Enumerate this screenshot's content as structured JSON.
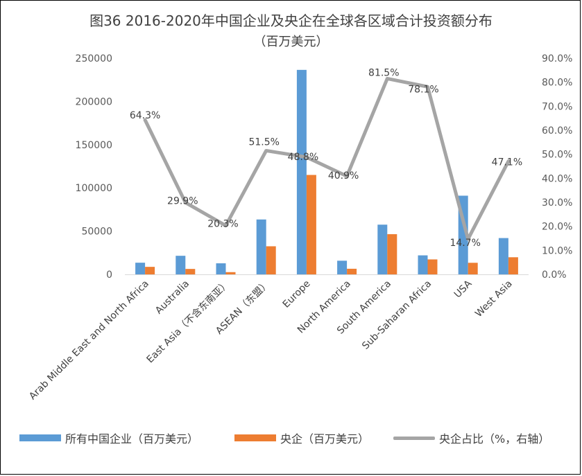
{
  "chart_data": {
    "type": "bar",
    "title": "图36 2016-2020年中国企业及央企在全球各区域合计投资额分布",
    "subtitle": "（百万美元）",
    "categories": [
      "Arab Middle East and North Africa",
      "Australia",
      "East Asia（不含东南亚）",
      "ASEAN（东盟）",
      "Europe",
      "North America",
      "South America",
      "Sub-Saharan Africa",
      "USA",
      "West Asia"
    ],
    "series": [
      {
        "name": "所有中国企业（百万美元）",
        "type": "bar",
        "axis": "left",
        "color": "#5B9BD5",
        "values": [
          13500,
          21500,
          12800,
          63500,
          236500,
          15800,
          57500,
          22000,
          91000,
          42000
        ]
      },
      {
        "name": "央企（百万美元）",
        "type": "bar",
        "axis": "left",
        "color": "#ED7D31",
        "values": [
          8700,
          6300,
          2600,
          32500,
          115000,
          6500,
          46500,
          17300,
          13400,
          19800
        ]
      },
      {
        "name": "央企占比（%，右轴）",
        "type": "line",
        "axis": "right",
        "color": "#A5A5A5",
        "values": [
          64.3,
          29.9,
          20.3,
          51.5,
          48.8,
          40.9,
          81.5,
          78.1,
          14.7,
          47.1
        ],
        "labels": [
          "64.3%",
          "29.9%",
          "20.3%",
          "51.5%",
          "48.8%",
          "40.9%",
          "81.5%",
          "78.1%",
          "14.7%",
          "47.1%"
        ]
      }
    ],
    "y_left": {
      "ylim": [
        0,
        250000
      ],
      "ticks": [
        0,
        50000,
        100000,
        150000,
        200000,
        250000
      ],
      "tick_labels": [
        "0",
        "50000",
        "100000",
        "150000",
        "200000",
        "250000"
      ]
    },
    "y_right": {
      "ylim": [
        0,
        90
      ],
      "ticks": [
        0,
        10,
        20,
        30,
        40,
        50,
        60,
        70,
        80,
        90
      ],
      "tick_labels": [
        "0.0%",
        "10.0%",
        "20.0%",
        "30.0%",
        "40.0%",
        "50.0%",
        "60.0%",
        "70.0%",
        "80.0%",
        "90.0%"
      ]
    },
    "grid": false,
    "legend_position": "bottom"
  }
}
